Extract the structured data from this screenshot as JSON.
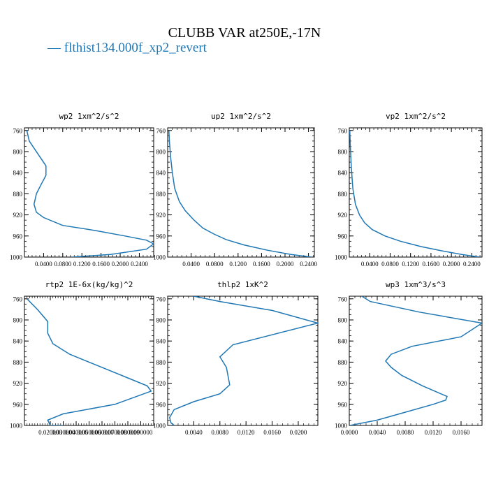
{
  "title": "CLUBB VAR at250E,-17N",
  "legend": {
    "dash": "—",
    "label": "flthist134.000f_xp2_revert",
    "color": "#1f77b4"
  },
  "chart_data": [
    {
      "type": "line",
      "title": "wp2  1xm^2/s^2",
      "series": [
        {
          "values": [
            [
              0.005,
              760
            ],
            [
              0.01,
              780
            ],
            [
              0.045,
              827
            ],
            [
              0.045,
              845
            ],
            [
              0.035,
              862
            ],
            [
              0.025,
              880
            ],
            [
              0.02,
              900
            ],
            [
              0.025,
              915
            ],
            [
              0.04,
              925
            ],
            [
              0.08,
              940
            ],
            [
              0.15,
              950
            ],
            [
              0.21,
              960
            ],
            [
              0.255,
              968
            ],
            [
              0.27,
              975
            ],
            [
              0.255,
              985
            ],
            [
              0.18,
              995
            ],
            [
              0.1,
              1000
            ]
          ]
        }
      ],
      "xlim": [
        0,
        0.27
      ],
      "xticks": [
        "0.0400",
        "0.0800",
        "0.1200",
        "0.1600",
        "0.2000",
        "0.2400"
      ],
      "xtick_values": [
        0.04,
        0.08,
        0.12,
        0.16,
        0.2,
        0.24
      ],
      "ylim": [
        1000,
        755
      ],
      "yticks": [
        760,
        800,
        840,
        880,
        920,
        960,
        1000
      ]
    },
    {
      "type": "line",
      "title": "up2  1xm^2/s^2",
      "series": [
        {
          "values": [
            [
              0.002,
              760
            ],
            [
              0.003,
              780
            ],
            [
              0.005,
              810
            ],
            [
              0.008,
              840
            ],
            [
              0.012,
              870
            ],
            [
              0.02,
              895
            ],
            [
              0.03,
              912
            ],
            [
              0.045,
              930
            ],
            [
              0.06,
              945
            ],
            [
              0.08,
              957
            ],
            [
              0.1,
              967
            ],
            [
              0.13,
              977
            ],
            [
              0.17,
              987
            ],
            [
              0.21,
              995
            ],
            [
              0.245,
              1000
            ]
          ]
        }
      ],
      "xlim": [
        0,
        0.25
      ],
      "xticks": [
        "0.0400",
        "0.0800",
        "0.1200",
        "0.1600",
        "0.2000",
        "0.2400"
      ],
      "xtick_values": [
        0.04,
        0.08,
        0.12,
        0.16,
        0.2,
        0.24
      ],
      "ylim": [
        1000,
        755
      ],
      "yticks": [
        760,
        800,
        840,
        880,
        920,
        960,
        1000
      ]
    },
    {
      "type": "line",
      "title": "vp2  1xm^2/s^2",
      "series": [
        {
          "values": [
            [
              0.001,
              760
            ],
            [
              0.002,
              790
            ],
            [
              0.004,
              830
            ],
            [
              0.007,
              870
            ],
            [
              0.012,
              900
            ],
            [
              0.02,
              920
            ],
            [
              0.03,
              935
            ],
            [
              0.045,
              948
            ],
            [
              0.07,
              960
            ],
            [
              0.1,
              970
            ],
            [
              0.14,
              980
            ],
            [
              0.18,
              988
            ],
            [
              0.22,
              995
            ],
            [
              0.255,
              1000
            ]
          ]
        }
      ],
      "xlim": [
        0,
        0.26
      ],
      "xticks": [
        "0.0400",
        "0.0800",
        "0.1200",
        "0.1600",
        "0.2000",
        "0.2400"
      ],
      "xtick_values": [
        0.04,
        0.08,
        0.12,
        0.16,
        0.2,
        0.24
      ],
      "ylim": [
        1000,
        755
      ],
      "yticks": [
        760,
        800,
        840,
        880,
        920,
        960,
        1000
      ]
    },
    {
      "type": "line",
      "title": "rtp2  1E-6x(kg/kg)^2",
      "series": [
        {
          "values": [
            [
              0.002,
              760
            ],
            [
              0.01,
              780
            ],
            [
              0.018,
              803
            ],
            [
              0.018,
              825
            ],
            [
              0.022,
              845
            ],
            [
              0.035,
              865
            ],
            [
              0.05,
              880
            ],
            [
              0.065,
              895
            ],
            [
              0.08,
              910
            ],
            [
              0.095,
              925
            ],
            [
              0.098,
              935
            ],
            [
              0.07,
              960
            ],
            [
              0.03,
              978
            ],
            [
              0.018,
              990
            ],
            [
              0.02,
              1000
            ],
            [
              0.03,
              1000
            ]
          ]
        }
      ],
      "xlim": [
        0,
        0.1
      ],
      "xticks": [
        "0.020000",
        "0.030000",
        "0.040000",
        "0.050000",
        "0.060000",
        "0.070000",
        "0.080000",
        "0.090000"
      ],
      "xtick_values": [
        0.02,
        0.03,
        0.04,
        0.05,
        0.06,
        0.07,
        0.08,
        0.09
      ],
      "ylim": [
        1000,
        755
      ],
      "yticks": [
        760,
        800,
        840,
        880,
        920,
        960,
        1000
      ]
    },
    {
      "type": "line",
      "title": "thlp2  1xK^2",
      "series": [
        {
          "values": [
            [
              0.004,
              755
            ],
            [
              0.008,
              765
            ],
            [
              0.016,
              782
            ],
            [
              0.023,
              806
            ],
            [
              0.01,
              847
            ],
            [
              0.008,
              870
            ],
            [
              0.009,
              890
            ],
            [
              0.0095,
              923
            ],
            [
              0.008,
              940
            ],
            [
              0.004,
              955
            ],
            [
              0.001,
              970
            ],
            [
              0.0003,
              985
            ],
            [
              0.0005,
              995
            ],
            [
              0.001,
              1000
            ]
          ]
        }
      ],
      "xlim": [
        0,
        0.023
      ],
      "xticks": [
        "0.0040",
        "0.0080",
        "0.0120",
        "0.0160",
        "0.0200"
      ],
      "xtick_values": [
        0.004,
        0.008,
        0.012,
        0.016,
        0.02
      ],
      "ylim": [
        1000,
        755
      ],
      "yticks": [
        760,
        800,
        840,
        880,
        920,
        960,
        1000
      ]
    },
    {
      "type": "line",
      "title": "wp3  1xm^3/s^3",
      "series": [
        {
          "values": [
            [
              0.0018,
              755
            ],
            [
              0.003,
              765
            ],
            [
              0.01,
              785
            ],
            [
              0.019,
              806
            ],
            [
              0.016,
              832
            ],
            [
              0.009,
              850
            ],
            [
              0.006,
              865
            ],
            [
              0.0052,
              878
            ],
            [
              0.006,
              890
            ],
            [
              0.0075,
              905
            ],
            [
              0.0105,
              925
            ],
            [
              0.014,
              945
            ],
            [
              0.0138,
              952
            ],
            [
              0.012,
              960
            ],
            [
              0.008,
              975
            ],
            [
              0.004,
              990
            ],
            [
              0.0001,
              1000
            ]
          ]
        }
      ],
      "xlim": [
        0,
        0.019
      ],
      "xticks": [
        "0.0000",
        "0.0040",
        "0.0080",
        "0.0120",
        "0.0160"
      ],
      "xtick_values": [
        0,
        0.004,
        0.008,
        0.012,
        0.016
      ],
      "ylim": [
        1000,
        755
      ],
      "yticks": [
        760,
        800,
        840,
        880,
        920,
        960,
        1000
      ]
    }
  ]
}
